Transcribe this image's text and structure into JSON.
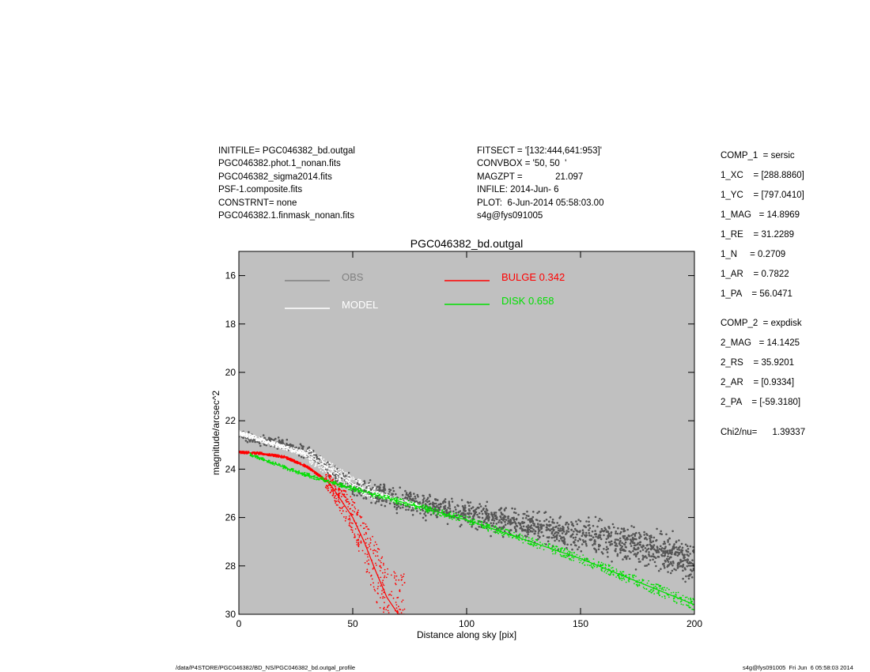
{
  "header": {
    "left_lines": [
      "INITFILE= PGC046382_bd.outgal",
      "PGC046382.phot.1_nonan.fits",
      "PGC046382_sigma2014.fits",
      "PSF-1.composite.fits",
      "CONSTRNT= none",
      "PGC046382.1.finmask_nonan.fits"
    ],
    "mid_lines": [
      "FITSECT = '[132:444,641:953]'",
      "CONVBOX = '50, 50  '",
      "MAGZPT =             21.097",
      "INFILE: 2014-Jun- 6",
      "PLOT:  6-Jun-2014 05:58:03.00",
      "s4g@fys091005"
    ]
  },
  "params": [
    "COMP_1  = sersic",
    "1_XC    = [288.8860]",
    "1_YC    = [797.0410]",
    "1_MAG   = 14.8969",
    "1_RE    = 31.2289",
    "1_N     = 0.2709",
    "1_AR    = 0.7822",
    "1_PA    = 56.0471",
    "COMP_2  = expdisk",
    "2_MAG   = 14.1425",
    "2_RS    = 35.9201",
    "2_AR    = [0.9334]",
    "2_PA    = [-59.3180]",
    "Chi2/nu=      1.39337"
  ],
  "footer": {
    "left": "/data/P4STORE/PGC046382/BD_NS/PGC046382_bd.outgal_profile",
    "right": "s4g@fys091005  Fri Jun  6 05:58:03 2014"
  },
  "chart_data": {
    "type": "scatter",
    "title": "PGC046382_bd.outgal",
    "xlabel": "Distance along sky [pix]",
    "ylabel": "magnitude/arcsec^2",
    "xlim": [
      0,
      200
    ],
    "ylim": [
      30,
      15
    ],
    "xticks": [
      0,
      50,
      100,
      150,
      200
    ],
    "yticks": [
      16,
      18,
      20,
      22,
      24,
      26,
      28,
      30
    ],
    "grid": false,
    "background": "#c0c0c0",
    "legend": [
      {
        "label": "OBS",
        "color": "#808080"
      },
      {
        "label": "MODEL",
        "color": "#ffffff"
      },
      {
        "label": "BULGE  0.342",
        "color": "#ff0000"
      },
      {
        "label": "DISK  0.658",
        "color": "#00e000"
      }
    ],
    "series": [
      {
        "name": "OBS",
        "color": "#555555",
        "x": [
          0,
          5,
          10,
          20,
          30,
          40,
          50,
          60,
          80,
          100,
          130,
          160,
          200
        ],
        "y": [
          22.6,
          22.7,
          22.8,
          23.0,
          23.3,
          24.0,
          24.7,
          25.0,
          25.5,
          25.8,
          26.4,
          26.9,
          27.8
        ]
      },
      {
        "name": "MODEL",
        "color": "#ffffff",
        "x": [
          0,
          10,
          20,
          30,
          40,
          50,
          60,
          70,
          80
        ],
        "y": [
          22.5,
          22.8,
          23.1,
          23.4,
          24.0,
          24.6,
          25.0,
          25.3,
          25.55
        ]
      },
      {
        "name": "BULGE  0.342",
        "color": "#ff0000",
        "x": [
          0,
          10,
          20,
          30,
          40,
          50,
          55,
          60,
          65,
          70,
          73
        ],
        "y": [
          23.3,
          23.35,
          23.5,
          23.9,
          24.6,
          26.0,
          27.0,
          28.2,
          29.3,
          30.0,
          30.0
        ]
      },
      {
        "name": "DISK  0.658",
        "color": "#00e000",
        "x": [
          5,
          25,
          50,
          100,
          150,
          200
        ],
        "y": [
          23.4,
          24.1,
          24.8,
          26.1,
          27.7,
          29.6
        ]
      }
    ]
  }
}
